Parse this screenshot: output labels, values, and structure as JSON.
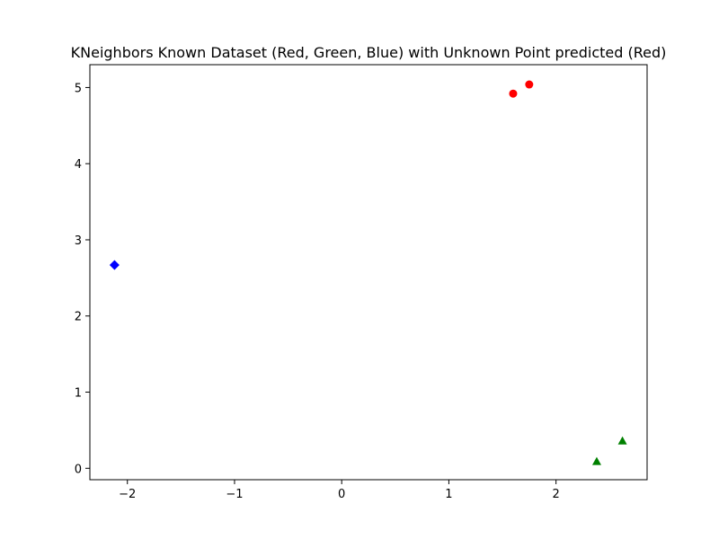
{
  "chart_data": {
    "type": "scatter",
    "title": "KNeighbors Known Dataset (Red, Green, Blue) with Unknown Point predicted (Red)",
    "xlabel": "",
    "ylabel": "",
    "xlim": [
      -2.35,
      2.85
    ],
    "ylim": [
      -0.15,
      5.3
    ],
    "xticks": [
      -2,
      -1,
      0,
      1,
      2
    ],
    "xtick_labels": [
      "−2",
      "−1",
      "0",
      "1",
      "2"
    ],
    "yticks": [
      0,
      1,
      2,
      3,
      4,
      5
    ],
    "ytick_labels": [
      "0",
      "1",
      "2",
      "3",
      "4",
      "5"
    ],
    "grid": false,
    "series": [
      {
        "color": "#ff0000",
        "marker": "circle",
        "points": [
          [
            1.6,
            4.92
          ],
          [
            1.75,
            5.04
          ]
        ]
      },
      {
        "color": "#008000",
        "marker": "triangle",
        "points": [
          [
            2.38,
            0.09
          ],
          [
            2.62,
            0.36
          ]
        ]
      },
      {
        "color": "#0000ff",
        "marker": "diamond",
        "points": [
          [
            -2.12,
            2.67
          ]
        ]
      }
    ]
  }
}
